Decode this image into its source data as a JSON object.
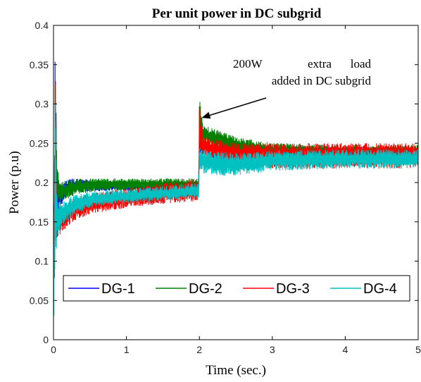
{
  "chart_data": {
    "type": "line",
    "title": "Per unit power in DC subgrid",
    "xlabel": "Time (sec.)",
    "ylabel": "Power (p.u)",
    "xlim": [
      0,
      5
    ],
    "ylim": [
      0,
      0.4
    ],
    "xticks": [
      0,
      1,
      2,
      3,
      4,
      5
    ],
    "yticks": [
      0,
      0.05,
      0.1,
      0.15,
      0.2,
      0.25,
      0.3,
      0.35,
      0.4
    ],
    "grid": false,
    "legend_position": "bottom",
    "annotation": {
      "lines": [
        "200W extra load",
        "added in DC subgrid"
      ],
      "arrow_to": [
        2.05,
        0.283
      ]
    },
    "series": [
      {
        "name": "DG-1",
        "color": "#0000FF",
        "t": [
          0,
          0.02,
          0.05,
          0.1,
          0.15,
          0.2,
          0.3,
          0.5,
          0.8,
          1.2,
          1.6,
          1.99,
          2.0,
          2.05,
          2.2,
          2.5,
          3.0,
          4.0,
          5.0
        ],
        "upper": [
          0.05,
          0.4,
          0.2,
          0.196,
          0.202,
          0.205,
          0.205,
          0.203,
          0.202,
          0.2,
          0.2,
          0.2,
          0.26,
          0.255,
          0.248,
          0.245,
          0.245,
          0.245,
          0.245
        ],
        "lower": [
          0.0,
          0.1,
          0.16,
          0.17,
          0.178,
          0.183,
          0.188,
          0.188,
          0.19,
          0.19,
          0.19,
          0.19,
          0.24,
          0.235,
          0.23,
          0.225,
          0.225,
          0.225,
          0.225
        ]
      },
      {
        "name": "DG-2",
        "color": "#008000",
        "t": [
          0,
          0.02,
          0.05,
          0.1,
          0.2,
          0.3,
          0.5,
          0.8,
          1.2,
          1.6,
          1.99,
          2.0,
          2.05,
          2.2,
          2.5,
          3.0,
          4.0,
          5.0
        ],
        "upper": [
          0.05,
          0.4,
          0.22,
          0.2,
          0.203,
          0.204,
          0.205,
          0.205,
          0.205,
          0.205,
          0.205,
          0.307,
          0.275,
          0.268,
          0.258,
          0.25,
          0.248,
          0.248
        ],
        "lower": [
          0.0,
          0.1,
          0.168,
          0.175,
          0.18,
          0.185,
          0.188,
          0.19,
          0.19,
          0.19,
          0.19,
          0.25,
          0.25,
          0.245,
          0.238,
          0.232,
          0.23,
          0.23
        ]
      },
      {
        "name": "DG-3",
        "color": "#FF0000",
        "t": [
          0,
          0.02,
          0.05,
          0.1,
          0.2,
          0.3,
          0.5,
          0.8,
          1.2,
          1.6,
          1.99,
          2.0,
          2.05,
          2.2,
          2.5,
          3.0,
          4.0,
          5.0
        ],
        "upper": [
          0.05,
          0.4,
          0.17,
          0.17,
          0.175,
          0.18,
          0.185,
          0.19,
          0.195,
          0.2,
          0.205,
          0.3,
          0.26,
          0.255,
          0.25,
          0.25,
          0.25,
          0.25
        ],
        "lower": [
          0.0,
          0.1,
          0.13,
          0.135,
          0.145,
          0.152,
          0.16,
          0.165,
          0.17,
          0.174,
          0.176,
          0.235,
          0.232,
          0.228,
          0.22,
          0.218,
          0.218,
          0.218
        ]
      },
      {
        "name": "DG-4",
        "color": "#00C0C0",
        "t": [
          0,
          0.02,
          0.05,
          0.1,
          0.2,
          0.3,
          0.5,
          0.8,
          1.2,
          1.6,
          1.99,
          2.0,
          2.05,
          2.2,
          2.5,
          3.0,
          4.0,
          5.0
        ],
        "upper": [
          0.05,
          0.33,
          0.18,
          0.175,
          0.18,
          0.184,
          0.188,
          0.19,
          0.193,
          0.196,
          0.2,
          0.245,
          0.243,
          0.24,
          0.238,
          0.24,
          0.242,
          0.242
        ],
        "lower": [
          0.0,
          0.1,
          0.125,
          0.14,
          0.152,
          0.16,
          0.168,
          0.172,
          0.176,
          0.178,
          0.18,
          0.215,
          0.212,
          0.21,
          0.208,
          0.215,
          0.218,
          0.218
        ]
      }
    ]
  }
}
